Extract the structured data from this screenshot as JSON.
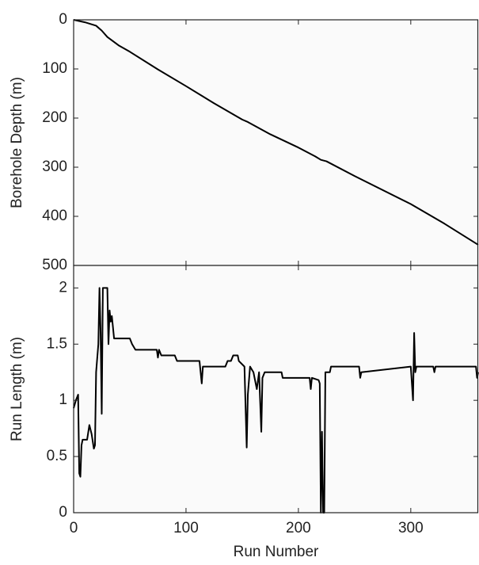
{
  "chart_data": [
    {
      "type": "line",
      "y_label": "Borehole Depth (m)",
      "x": [
        0,
        10,
        20,
        25,
        30,
        40,
        50,
        75,
        100,
        125,
        150,
        155,
        175,
        200,
        215,
        220,
        225,
        250,
        300,
        330,
        360
      ],
      "series": [
        {
          "color": "#000000",
          "values": [
            0,
            5,
            12,
            22,
            35,
            52,
            65,
            101,
            135,
            170,
            203,
            208,
            233,
            260,
            278,
            285,
            288,
            318,
            375,
            415,
            458
          ]
        }
      ],
      "xlim": [
        0,
        360
      ],
      "xticks": [
        0,
        100,
        200,
        300
      ],
      "ylim": [
        500,
        0
      ],
      "yticks": [
        0,
        100,
        200,
        300,
        400,
        500
      ]
    },
    {
      "type": "line",
      "x_label": "Run Number",
      "y_label": "Run Length (m)",
      "x": [
        0,
        2,
        4,
        5,
        6,
        7,
        8,
        12,
        14,
        16,
        18,
        19,
        20,
        22,
        23,
        24,
        25,
        26,
        30,
        31,
        32,
        33,
        34,
        36,
        50,
        52,
        55,
        74,
        75,
        76,
        78,
        90,
        92,
        112,
        114,
        115,
        135,
        137,
        140,
        142,
        146,
        147,
        152,
        154,
        155,
        157,
        160,
        163,
        165,
        167,
        168,
        170,
        185,
        186,
        210,
        211,
        212,
        218,
        219,
        220,
        221,
        222,
        223,
        224,
        228,
        229,
        254,
        255,
        256,
        300,
        302,
        303,
        304,
        305,
        320,
        321,
        322,
        358,
        359,
        360
      ],
      "series": [
        {
          "color": "#000000",
          "values": [
            0.93,
            1.0,
            1.05,
            0.35,
            0.32,
            0.6,
            0.65,
            0.65,
            0.78,
            0.7,
            0.57,
            0.6,
            1.25,
            1.5,
            2.0,
            1.6,
            0.88,
            2.0,
            2.0,
            1.5,
            1.8,
            1.7,
            1.75,
            1.55,
            1.55,
            1.5,
            1.45,
            1.45,
            1.38,
            1.45,
            1.4,
            1.4,
            1.35,
            1.35,
            1.15,
            1.3,
            1.3,
            1.35,
            1.35,
            1.4,
            1.4,
            1.35,
            1.3,
            0.58,
            1.05,
            1.3,
            1.25,
            1.1,
            1.25,
            0.72,
            1.2,
            1.25,
            1.25,
            1.2,
            1.2,
            1.1,
            1.2,
            1.18,
            1.15,
            0,
            0.72,
            0,
            0,
            1.25,
            1.25,
            1.3,
            1.3,
            1.2,
            1.25,
            1.3,
            1.0,
            1.6,
            1.25,
            1.3,
            1.3,
            1.25,
            1.3,
            1.3,
            1.2,
            1.25
          ]
        }
      ],
      "xlim": [
        0,
        360
      ],
      "xticks": [
        0,
        100,
        200,
        300
      ],
      "ylim": [
        0,
        2.2
      ],
      "yticks": [
        0,
        0.5,
        1,
        1.5,
        2
      ]
    }
  ]
}
